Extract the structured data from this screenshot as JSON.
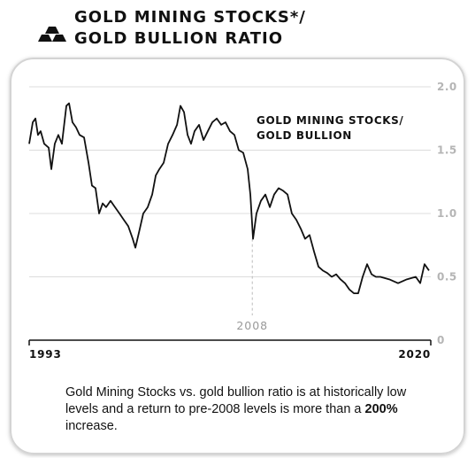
{
  "chart_data": {
    "type": "line",
    "title": "GOLD MINING STOCKS*/ GOLD BULLION RATIO",
    "caption": [
      "Gold Mining Stocks vs. gold bullion ratio is at historically low levels and a return to pre-2008 levels is more than a ",
      "200%",
      " increase."
    ],
    "annotation": {
      "text": "2008",
      "x": 2008
    },
    "x": [
      1993.0,
      1993.24,
      1993.42,
      1993.59,
      1993.77,
      1994.01,
      1994.31,
      1994.49,
      1994.72,
      1994.96,
      1995.2,
      1995.5,
      1995.68,
      1995.91,
      1996.15,
      1996.39,
      1996.69,
      1996.99,
      1997.22,
      1997.46,
      1997.7,
      1997.94,
      1998.17,
      1998.47,
      1998.77,
      1999.07,
      1999.36,
      1999.66,
      1999.96,
      2000.14,
      2000.38,
      2000.67,
      2000.97,
      2001.27,
      2001.51,
      2001.75,
      2002.04,
      2002.34,
      2002.64,
      2002.94,
      2003.17,
      2003.41,
      2003.65,
      2003.88,
      2004.12,
      2004.42,
      2004.72,
      2005.01,
      2005.31,
      2005.61,
      2005.91,
      2006.2,
      2006.5,
      2006.8,
      2007.09,
      2007.39,
      2007.69,
      2007.87,
      2008.05,
      2008.28,
      2008.58,
      2008.88,
      2009.18,
      2009.47,
      2009.77,
      2010.07,
      2010.37,
      2010.66,
      2010.96,
      2011.26,
      2011.55,
      2011.85,
      2012.15,
      2012.45,
      2012.74,
      2013.04,
      2013.34,
      2013.64,
      2013.93,
      2014.23,
      2014.53,
      2014.83,
      2015.12,
      2015.42,
      2015.72,
      2016.02,
      2016.31,
      2016.61,
      2017.21,
      2017.8,
      2018.39,
      2018.99,
      2019.29,
      2019.58,
      2019.88
    ],
    "series": [
      {
        "name": "GOLD MINING STOCKS/ GOLD BULLION",
        "color": "#111111",
        "values": [
          1.55,
          1.72,
          1.75,
          1.62,
          1.65,
          1.55,
          1.52,
          1.35,
          1.55,
          1.62,
          1.55,
          1.85,
          1.87,
          1.72,
          1.68,
          1.62,
          1.6,
          1.4,
          1.22,
          1.2,
          1.0,
          1.08,
          1.05,
          1.1,
          1.05,
          1.0,
          0.95,
          0.9,
          0.8,
          0.73,
          0.85,
          1.0,
          1.05,
          1.15,
          1.3,
          1.35,
          1.4,
          1.55,
          1.62,
          1.7,
          1.85,
          1.8,
          1.62,
          1.55,
          1.65,
          1.7,
          1.58,
          1.65,
          1.72,
          1.75,
          1.7,
          1.72,
          1.65,
          1.62,
          1.5,
          1.48,
          1.35,
          1.15,
          0.8,
          1.0,
          1.1,
          1.15,
          1.05,
          1.15,
          1.2,
          1.18,
          1.15,
          1.0,
          0.95,
          0.88,
          0.8,
          0.83,
          0.7,
          0.58,
          0.55,
          0.53,
          0.5,
          0.52,
          0.48,
          0.45,
          0.4,
          0.37,
          0.37,
          0.5,
          0.6,
          0.52,
          0.5,
          0.5,
          0.48,
          0.45,
          0.48,
          0.5,
          0.45,
          0.6,
          0.55
        ]
      }
    ],
    "xlim": [
      1993,
      2020
    ],
    "xticks": [
      1993,
      2020
    ],
    "ylim": [
      0,
      2
    ],
    "yticks": [
      0,
      0.5,
      {
        "value": 1,
        "label": "1.0"
      },
      1.5,
      {
        "value": 2,
        "label": "2.0"
      }
    ],
    "grid": true
  }
}
